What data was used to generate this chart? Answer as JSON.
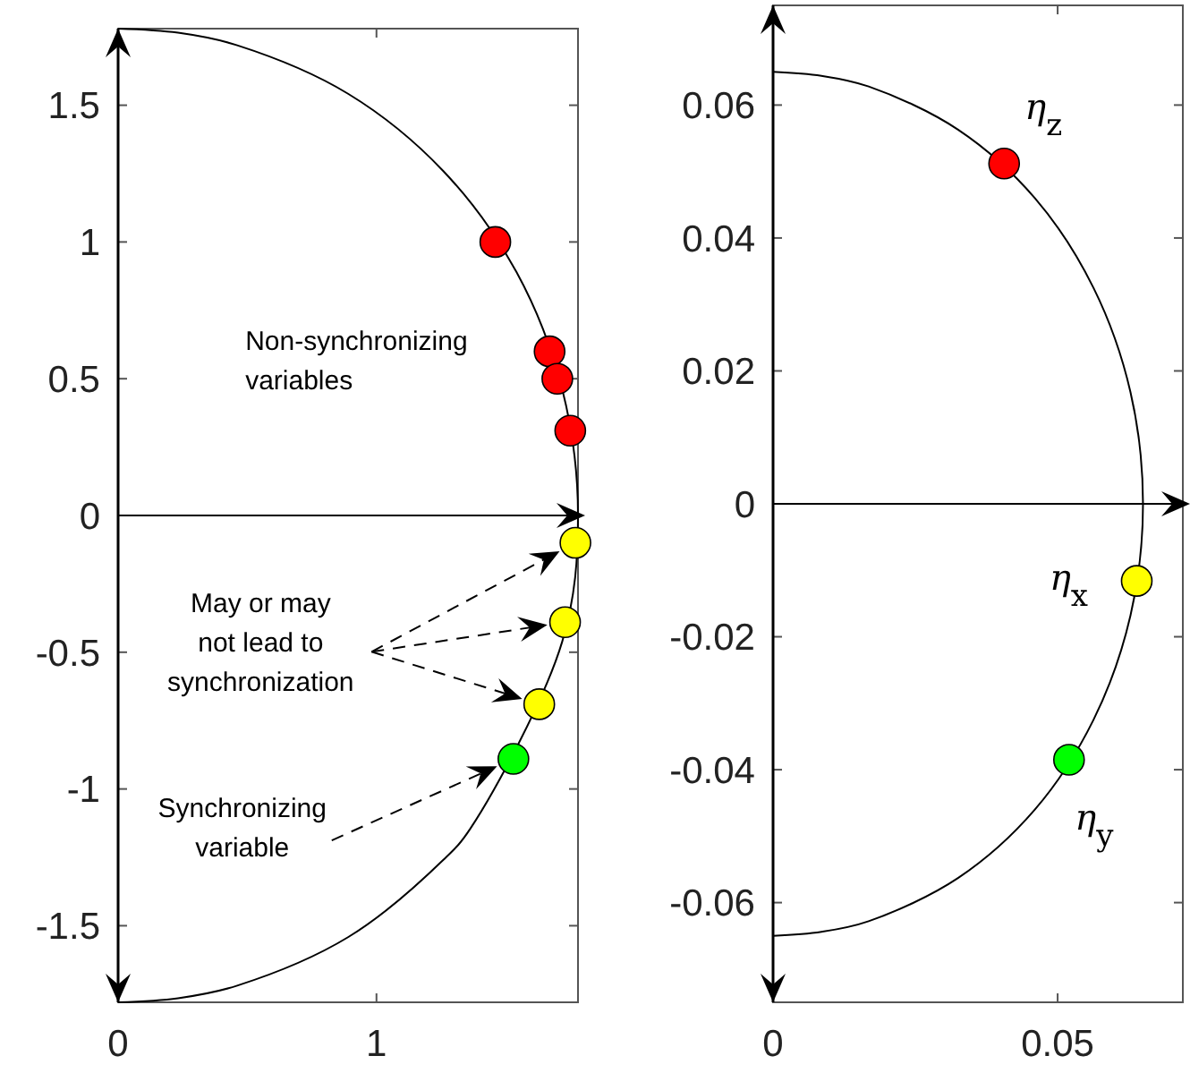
{
  "chart_data": [
    {
      "type": "scatter",
      "xlim": [
        0,
        1.78
      ],
      "ylim": [
        -1.78,
        1.78
      ],
      "xticks": [
        0,
        1
      ],
      "yticks": [
        -1.5,
        -1,
        -0.5,
        0,
        0.5,
        1,
        1.5
      ],
      "grid": false,
      "ref_lines": [
        {
          "axis": "y",
          "value": 0,
          "color": "#000000"
        }
      ],
      "annotations": [
        "Non-synchronizing variables",
        "May or may not lead to synchronization",
        "Synchronizing variable"
      ],
      "series": [
        {
          "type": "line",
          "color": "#000000",
          "marker": "none",
          "x": [
            0,
            0.232,
            0.461,
            0.89,
            1.259,
            1.542,
            1.719,
            1.78,
            1.719,
            1.364,
            1.259,
            0.89,
            0.461,
            0.232,
            0
          ],
          "values": [
            1.78,
            1.765,
            1.719,
            1.542,
            1.259,
            0.89,
            0.461,
            0,
            -0.461,
            -1.144,
            -1.259,
            -1.542,
            -1.719,
            -1.765,
            -1.78
          ]
        },
        {
          "type": "scatter",
          "color": "#ff0000",
          "marker": "circle",
          "x": [
            1.46,
            1.67,
            1.7,
            1.75
          ],
          "values": [
            1.0,
            0.6,
            0.5,
            0.31
          ]
        },
        {
          "type": "scatter",
          "color": "#ffff00",
          "marker": "circle",
          "x": [
            1.77,
            1.73,
            1.63
          ],
          "values": [
            -0.1,
            -0.39,
            -0.69
          ]
        },
        {
          "type": "scatter",
          "color": "#00ff00",
          "marker": "circle",
          "x": [
            1.53
          ],
          "values": [
            -0.89
          ]
        }
      ]
    },
    {
      "type": "scatter",
      "xlim": [
        0,
        0.072
      ],
      "ylim": [
        -0.075,
        0.075
      ],
      "xticks": [
        0,
        0.05
      ],
      "yticks": [
        -0.06,
        -0.04,
        -0.02,
        0,
        0.02,
        0.04,
        0.06
      ],
      "grid": false,
      "ref_lines": [
        {
          "axis": "y",
          "value": 0,
          "color": "#000000"
        }
      ],
      "series": [
        {
          "type": "line",
          "color": "#000000",
          "marker": "none",
          "x": [
            0,
            0.0085,
            0.0168,
            0.0325,
            0.046,
            0.0563,
            0.0628,
            0.065,
            0.0628,
            0.0563,
            0.046,
            0.0325,
            0.0168,
            0.0085,
            0
          ],
          "values": [
            0.065,
            0.0644,
            0.0628,
            0.0563,
            0.046,
            0.0325,
            0.0168,
            0,
            -0.0168,
            -0.0325,
            -0.046,
            -0.0563,
            -0.0628,
            -0.0644,
            -0.065
          ]
        },
        {
          "type": "scatter",
          "name": "η$_{z}$",
          "color": "#ff0000",
          "marker": "circle",
          "x": [
            0.0406
          ],
          "values": [
            0.0512
          ]
        },
        {
          "type": "scatter",
          "name": "η$_{x}$",
          "color": "#ffff00",
          "marker": "circle",
          "x": [
            0.0639
          ],
          "values": [
            -0.0116
          ]
        },
        {
          "type": "scatter",
          "name": "η$_{y}$",
          "color": "#00ff00",
          "marker": "circle",
          "x": [
            0.052
          ],
          "values": [
            -0.0385
          ]
        }
      ]
    }
  ]
}
